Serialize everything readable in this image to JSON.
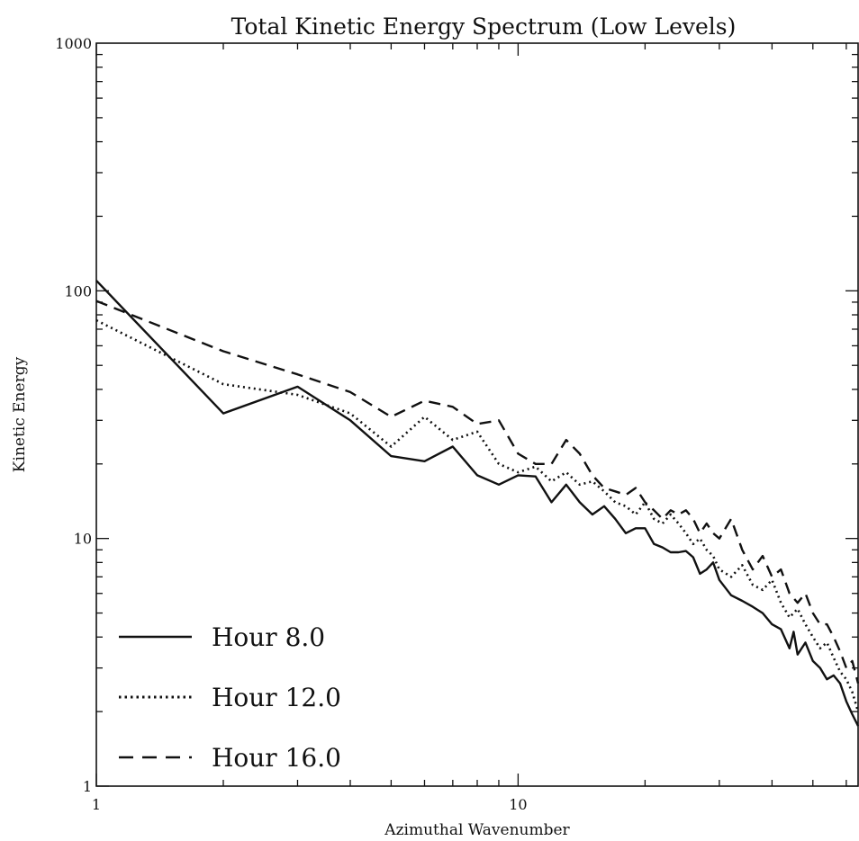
{
  "chart_data": {
    "type": "line",
    "title": "Total Kinetic Energy Spectrum (Low Levels)",
    "xlabel": "Azimuthal Wavenumber",
    "ylabel": "Kinetic Energy",
    "xscale": "log",
    "yscale": "log",
    "xlim": [
      1,
      64
    ],
    "ylim": [
      1,
      1000
    ],
    "x_tick_labels": [
      "1",
      "10"
    ],
    "y_tick_labels": [
      "1",
      "10",
      "100",
      "1000"
    ],
    "grid": false,
    "legend_position": "bottom-left",
    "series": [
      {
        "name": "Hour 8.0",
        "dash": "solid",
        "color": "#111111",
        "x": [
          1,
          2,
          3,
          4,
          5,
          6,
          7,
          8,
          9,
          10,
          11,
          12,
          13,
          14,
          15,
          16,
          17,
          18,
          19,
          20,
          21,
          22,
          23,
          24,
          25,
          26,
          27,
          28,
          29,
          30,
          32,
          34,
          36,
          38,
          40,
          42,
          44,
          45,
          46,
          48,
          50,
          52,
          54,
          56,
          58,
          60,
          62,
          64
        ],
        "y": [
          110,
          32,
          41,
          30,
          21.5,
          20.5,
          23.5,
          18,
          16.5,
          18,
          17.8,
          14,
          16.5,
          14,
          12.5,
          13.5,
          12,
          10.5,
          11,
          11,
          9.5,
          9.2,
          8.8,
          8.8,
          8.9,
          8.4,
          7.2,
          7.5,
          8.0,
          6.8,
          5.9,
          5.6,
          5.3,
          5.0,
          4.5,
          4.3,
          3.6,
          4.2,
          3.4,
          3.8,
          3.2,
          3.0,
          2.7,
          2.8,
          2.6,
          2.2,
          1.95,
          1.75
        ]
      },
      {
        "name": "Hour 12.0",
        "dash": "dotted",
        "color": "#111111",
        "x": [
          1,
          2,
          3,
          4,
          5,
          6,
          7,
          8,
          9,
          10,
          11,
          12,
          13,
          14,
          15,
          16,
          17,
          18,
          19,
          20,
          21,
          22,
          23,
          24,
          25,
          26,
          27,
          28,
          29,
          30,
          32,
          34,
          36,
          38,
          40,
          42,
          44,
          46,
          48,
          50,
          52,
          54,
          56,
          58,
          60,
          62,
          64
        ],
        "y": [
          76,
          42,
          38,
          32,
          23.5,
          31,
          25,
          27,
          20,
          18.5,
          19.5,
          17,
          18.5,
          16.5,
          17,
          15.5,
          14,
          13.5,
          12.5,
          14,
          12,
          11.5,
          12.5,
          11.5,
          10.5,
          9.5,
          10,
          9,
          8.5,
          7.5,
          7,
          7.8,
          6.5,
          6.2,
          6.8,
          5.5,
          4.8,
          5.2,
          4.5,
          4.0,
          3.6,
          3.8,
          3.3,
          2.9,
          2.7,
          2.4,
          2.0
        ]
      },
      {
        "name": "Hour 16.0",
        "dash": "dashed",
        "color": "#111111",
        "x": [
          1,
          2,
          3,
          4,
          5,
          6,
          7,
          8,
          9,
          10,
          11,
          12,
          13,
          14,
          15,
          16,
          17,
          18,
          19,
          20,
          21,
          22,
          23,
          24,
          25,
          26,
          27,
          28,
          29,
          30,
          32,
          34,
          36,
          38,
          40,
          42,
          44,
          46,
          48,
          50,
          52,
          54,
          56,
          58,
          60,
          62,
          64
        ],
        "y": [
          91,
          57,
          46,
          39,
          31,
          36,
          34,
          29,
          30,
          22,
          20,
          20,
          25,
          22,
          18,
          16,
          15.5,
          15,
          16,
          14,
          13,
          12,
          13,
          12.5,
          13,
          12,
          10.5,
          11.5,
          10.5,
          10,
          12,
          9,
          7.5,
          8.5,
          7,
          7.5,
          6,
          5.5,
          6,
          5,
          4.5,
          4.5,
          4,
          3.5,
          3,
          3.2,
          2.6
        ]
      }
    ]
  }
}
